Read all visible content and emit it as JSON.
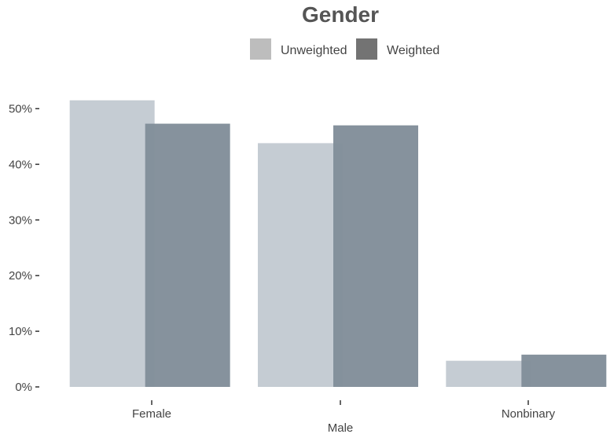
{
  "chart_data": {
    "type": "bar",
    "title": "Gender",
    "xlabel": "",
    "ylabel": "",
    "categories": [
      "Female",
      "Male",
      "Nonbinary"
    ],
    "series": [
      {
        "name": "Unweighted",
        "values": [
          51.5,
          43.8,
          4.7
        ],
        "color": "#c5ccd3",
        "legend_color": "#bdbdbd"
      },
      {
        "name": "Weighted",
        "values": [
          47.3,
          47.0,
          5.8
        ],
        "color": "#828e9a",
        "legend_color": "#737373"
      }
    ],
    "ylim": [
      0,
      52.6
    ],
    "y_ticks": [
      0,
      10,
      20,
      30,
      40,
      50
    ],
    "y_tick_labels": [
      "0%",
      "10%",
      "20%",
      "30%",
      "40%",
      "50%"
    ],
    "grid": false,
    "legend_position": "top"
  }
}
